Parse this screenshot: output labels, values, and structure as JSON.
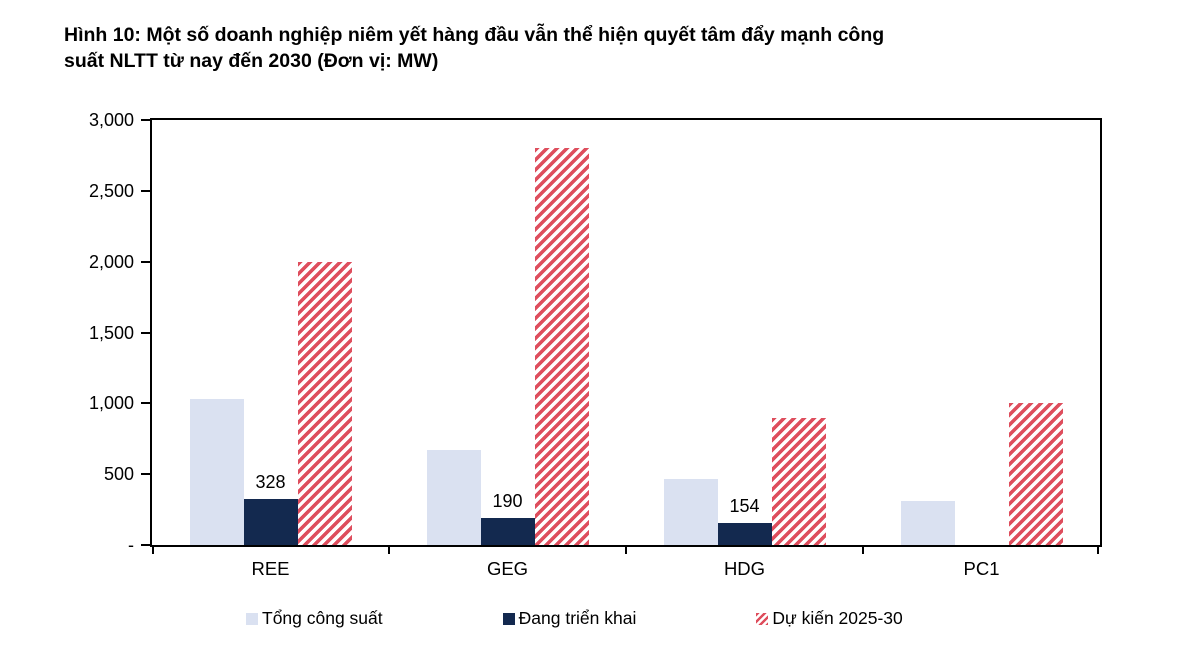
{
  "figure": {
    "title_line1": "Hình 10: Một số doanh nghiệp niêm yết hàng đầu vẫn thể hiện quyết tâm đẩy mạnh công",
    "title_line2": "suất NLTT từ nay đến 2030 (Đơn vị: MW)"
  },
  "chart_data": {
    "type": "bar",
    "title": "Hình 10: Một số doanh nghiệp niêm yết hàng đầu vẫn thể hiện quyết tâm đẩy mạnh công suất NLTT từ nay đến 2030",
    "unit": "MW",
    "categories": [
      "REE",
      "GEG",
      "HDG",
      "PC1"
    ],
    "series": [
      {
        "name": "Tổng công suất",
        "key": "tong-cong-suat",
        "color": "#DAE1F1",
        "pattern": "solid",
        "values": [
          1030,
          670,
          465,
          310
        ],
        "show_value_labels": false
      },
      {
        "name": "Đang triển khai",
        "key": "dang-trien-khai",
        "color": "#13294F",
        "pattern": "solid",
        "values": [
          328,
          190,
          154,
          0
        ],
        "show_value_labels": true
      },
      {
        "name": "Dự kiến 2025-30",
        "key": "du-kien-2025-30",
        "color": "#DE4E5D",
        "pattern": "hatch",
        "values": [
          2000,
          2800,
          900,
          1000
        ],
        "show_value_labels": false
      }
    ],
    "value_labels": [
      "328",
      "190",
      "154"
    ],
    "yticks": [
      {
        "value": 0,
        "label": "-"
      },
      {
        "value": 500,
        "label": "500"
      },
      {
        "value": 1000,
        "label": "1,000"
      },
      {
        "value": 1500,
        "label": "1,500"
      },
      {
        "value": 2000,
        "label": "2,000"
      },
      {
        "value": 2500,
        "label": "2,500"
      },
      {
        "value": 3000,
        "label": "3,000"
      }
    ],
    "ylim": [
      0,
      3000
    ],
    "grid": false,
    "legend_position": "bottom",
    "colors": {
      "axis": "#000000",
      "background": "#ffffff",
      "hatch_background": "#ffffff"
    }
  }
}
